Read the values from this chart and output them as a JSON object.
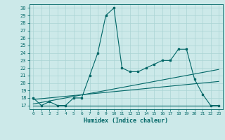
{
  "title": "",
  "xlabel": "Humidex (Indice chaleur)",
  "background_color": "#cce9e9",
  "grid_color": "#aad4d4",
  "line_color": "#006666",
  "xlim": [
    -0.5,
    23.5
  ],
  "ylim": [
    16.5,
    30.5
  ],
  "yticks": [
    17,
    18,
    19,
    20,
    21,
    22,
    23,
    24,
    25,
    26,
    27,
    28,
    29,
    30
  ],
  "xticks": [
    0,
    1,
    2,
    3,
    4,
    5,
    6,
    7,
    8,
    9,
    10,
    11,
    12,
    13,
    14,
    15,
    16,
    17,
    18,
    19,
    20,
    21,
    22,
    23
  ],
  "line1_x": [
    0,
    1,
    2,
    3,
    4,
    5,
    6,
    7,
    8,
    9,
    10,
    11,
    12,
    13,
    14,
    15,
    16,
    17,
    18,
    19,
    20,
    21,
    22,
    23
  ],
  "line1_y": [
    18,
    17,
    17.5,
    17,
    17,
    18,
    18,
    21,
    24,
    29,
    30,
    22,
    21.5,
    21.5,
    22,
    22.5,
    23,
    23,
    24.5,
    24.5,
    20.5,
    18.5,
    17,
    17
  ],
  "line2_x": [
    0,
    23
  ],
  "line2_y": [
    17.0,
    17.0
  ],
  "line3_x": [
    0,
    23
  ],
  "line3_y": [
    17.2,
    21.8
  ],
  "line4_x": [
    0,
    23
  ],
  "line4_y": [
    17.8,
    20.2
  ]
}
